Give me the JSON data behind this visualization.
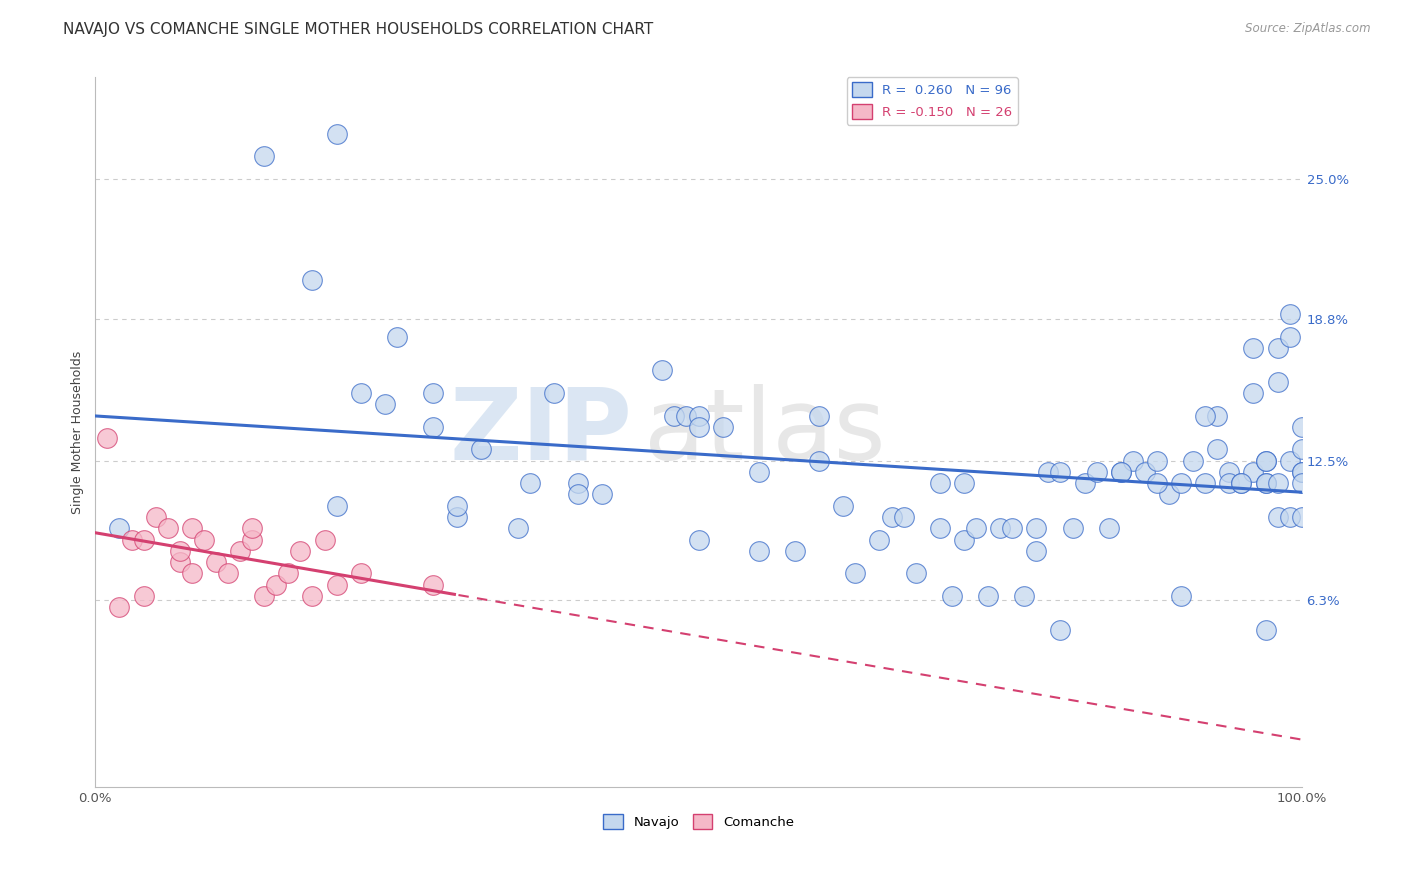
{
  "title": "NAVAJO VS COMANCHE SINGLE MOTHER HOUSEHOLDS CORRELATION CHART",
  "source": "Source: ZipAtlas.com",
  "ylabel": "Single Mother Households",
  "background_color": "#ffffff",
  "grid_color": "#cccccc",
  "navajo_color": "#c5d8ee",
  "comanche_color": "#f5b8c8",
  "navajo_line_color": "#3a6bc9",
  "comanche_line_color": "#d44070",
  "legend_navajo_R": "0.260",
  "legend_navajo_N": "96",
  "legend_comanche_R": "-0.150",
  "legend_comanche_N": "26",
  "xmin": 0.0,
  "xmax": 1.0,
  "ymin": -0.02,
  "ymax": 0.295,
  "yticks": [
    0.063,
    0.125,
    0.188,
    0.25
  ],
  "ytick_labels": [
    "6.3%",
    "12.5%",
    "18.8%",
    "25.0%"
  ],
  "xtick_labels": [
    "0.0%",
    "100.0%"
  ],
  "xticks": [
    0.0,
    1.0
  ],
  "navajo_x": [
    0.02,
    0.14,
    0.18,
    0.2,
    0.2,
    0.22,
    0.24,
    0.25,
    0.28,
    0.28,
    0.3,
    0.32,
    0.35,
    0.36,
    0.38,
    0.4,
    0.42,
    0.47,
    0.48,
    0.49,
    0.5,
    0.5,
    0.5,
    0.52,
    0.55,
    0.58,
    0.6,
    0.62,
    0.63,
    0.65,
    0.66,
    0.67,
    0.68,
    0.7,
    0.71,
    0.72,
    0.73,
    0.74,
    0.75,
    0.76,
    0.77,
    0.78,
    0.79,
    0.8,
    0.8,
    0.81,
    0.82,
    0.83,
    0.84,
    0.85,
    0.86,
    0.87,
    0.88,
    0.89,
    0.9,
    0.9,
    0.91,
    0.92,
    0.93,
    0.93,
    0.94,
    0.94,
    0.95,
    0.96,
    0.96,
    0.96,
    0.97,
    0.97,
    0.97,
    0.97,
    0.97,
    0.98,
    0.98,
    0.98,
    0.98,
    0.99,
    0.99,
    0.99,
    0.99,
    1.0,
    1.0,
    1.0,
    1.0,
    1.0,
    1.0,
    0.4,
    0.85,
    0.72,
    0.3,
    0.55,
    0.6,
    0.7,
    0.78,
    0.88,
    0.92,
    0.95
  ],
  "navajo_y": [
    0.095,
    0.26,
    0.205,
    0.27,
    0.105,
    0.155,
    0.15,
    0.18,
    0.155,
    0.14,
    0.1,
    0.13,
    0.095,
    0.115,
    0.155,
    0.115,
    0.11,
    0.165,
    0.145,
    0.145,
    0.145,
    0.14,
    0.09,
    0.14,
    0.085,
    0.085,
    0.145,
    0.105,
    0.075,
    0.09,
    0.1,
    0.1,
    0.075,
    0.095,
    0.065,
    0.09,
    0.095,
    0.065,
    0.095,
    0.095,
    0.065,
    0.085,
    0.12,
    0.12,
    0.05,
    0.095,
    0.115,
    0.12,
    0.095,
    0.12,
    0.125,
    0.12,
    0.125,
    0.11,
    0.115,
    0.065,
    0.125,
    0.115,
    0.13,
    0.145,
    0.12,
    0.115,
    0.115,
    0.12,
    0.155,
    0.175,
    0.125,
    0.115,
    0.125,
    0.115,
    0.05,
    0.16,
    0.175,
    0.115,
    0.1,
    0.18,
    0.19,
    0.125,
    0.1,
    0.12,
    0.13,
    0.1,
    0.14,
    0.12,
    0.115,
    0.11,
    0.12,
    0.115,
    0.105,
    0.12,
    0.125,
    0.115,
    0.095,
    0.115,
    0.145,
    0.115
  ],
  "comanche_x": [
    0.01,
    0.02,
    0.03,
    0.04,
    0.04,
    0.05,
    0.06,
    0.07,
    0.07,
    0.08,
    0.08,
    0.09,
    0.1,
    0.11,
    0.12,
    0.13,
    0.13,
    0.14,
    0.15,
    0.16,
    0.17,
    0.18,
    0.19,
    0.2,
    0.22,
    0.28
  ],
  "comanche_y": [
    0.135,
    0.06,
    0.09,
    0.09,
    0.065,
    0.1,
    0.095,
    0.08,
    0.085,
    0.075,
    0.095,
    0.09,
    0.08,
    0.075,
    0.085,
    0.09,
    0.095,
    0.065,
    0.07,
    0.075,
    0.085,
    0.065,
    0.09,
    0.07,
    0.075,
    0.07
  ],
  "watermark_zip": "ZIP",
  "watermark_atlas": "atlas",
  "title_fontsize": 11,
  "axis_label_fontsize": 9,
  "tick_fontsize": 9.5,
  "legend_fontsize": 9.5,
  "source_fontsize": 8.5
}
